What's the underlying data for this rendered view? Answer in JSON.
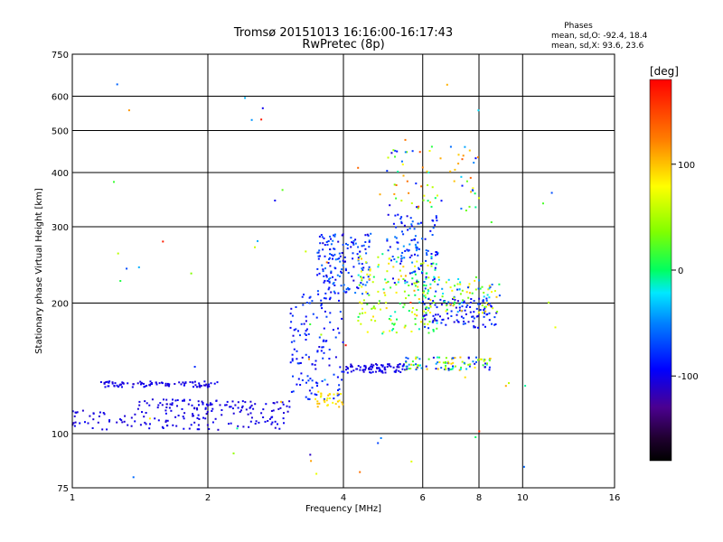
{
  "header": {
    "title": "Tromsø 20151013 16:16:00-16:17:43",
    "subtitle": "RwPretec (8p)",
    "stats_heading": "Phases",
    "stats_o": "mean, sd,O: -92.4, 18.4",
    "stats_x": "mean, sd,X:  93.6, 23.6"
  },
  "colorbar": {
    "label": "[deg]",
    "min": -180,
    "max": 180,
    "ticks": [
      {
        "value": 100,
        "label": "100"
      },
      {
        "value": 0,
        "label": "0"
      },
      {
        "value": -100,
        "label": "-100"
      }
    ]
  },
  "chart_data": {
    "type": "scatter",
    "title": "Tromsø 20151013 16:16:00-16:17:43",
    "subtitle": "RwPretec (8p)",
    "xlabel": "Frequency [MHz]",
    "ylabel": "Stationary phase Virtual Height [km]",
    "xscale": "log",
    "yscale": "log",
    "xlim": [
      1,
      16
    ],
    "ylim": [
      75,
      750
    ],
    "grid": true,
    "xticks": [
      {
        "value": 1,
        "label": "1"
      },
      {
        "value": 2,
        "label": "2"
      },
      {
        "value": 4,
        "label": "4"
      },
      {
        "value": 6,
        "label": "6"
      },
      {
        "value": 8,
        "label": "8"
      },
      {
        "value": 10,
        "label": "10"
      },
      {
        "value": 16,
        "label": "16"
      }
    ],
    "yticks": [
      {
        "value": 75,
        "label": "75"
      },
      {
        "value": 100,
        "label": "100"
      },
      {
        "value": 200,
        "label": "200"
      },
      {
        "value": 300,
        "label": "300"
      },
      {
        "value": 400,
        "label": "400"
      },
      {
        "value": 500,
        "label": "500"
      },
      {
        "value": 600,
        "label": "600"
      },
      {
        "value": 750,
        "label": "750"
      }
    ],
    "point_groups": [
      {
        "f_range": [
          1.0,
          3.05
        ],
        "h_range": [
          102,
          113
        ],
        "phase_range": [
          -110,
          -95
        ],
        "count": 120
      },
      {
        "f_range": [
          1.12,
          2.1
        ],
        "h_range": [
          128,
          132
        ],
        "phase_range": [
          -110,
          -95
        ],
        "count": 90
      },
      {
        "f_range": [
          1.4,
          3.05
        ],
        "h_range": [
          113,
          120
        ],
        "phase_range": [
          -110,
          -95
        ],
        "count": 90
      },
      {
        "f_range": [
          3.05,
          4.0
        ],
        "h_range": [
          120,
          210
        ],
        "phase_range": [
          -105,
          -70
        ],
        "count": 130
      },
      {
        "f_range": [
          3.4,
          4.0
        ],
        "h_range": [
          115,
          125
        ],
        "phase_range": [
          70,
          110
        ],
        "count": 30
      },
      {
        "f_range": [
          3.5,
          4.6
        ],
        "h_range": [
          210,
          290
        ],
        "phase_range": [
          -110,
          -50
        ],
        "count": 160
      },
      {
        "f_range": [
          4.0,
          5.5
        ],
        "h_range": [
          138,
          145
        ],
        "phase_range": [
          -110,
          -90
        ],
        "count": 80
      },
      {
        "f_range": [
          4.3,
          6.5
        ],
        "h_range": [
          170,
          260
        ],
        "phase_range": [
          -20,
          110
        ],
        "count": 160
      },
      {
        "f_range": [
          5.0,
          6.5
        ],
        "h_range": [
          220,
          320
        ],
        "phase_range": [
          -110,
          -40
        ],
        "count": 110
      },
      {
        "f_range": [
          5.5,
          8.5
        ],
        "h_range": [
          140,
          150
        ],
        "phase_range": [
          -110,
          110
        ],
        "count": 100
      },
      {
        "f_range": [
          6.0,
          8.8
        ],
        "h_range": [
          175,
          205
        ],
        "phase_range": [
          -110,
          -70
        ],
        "count": 110
      },
      {
        "f_range": [
          6.0,
          9.0
        ],
        "h_range": [
          190,
          230
        ],
        "phase_range": [
          -80,
          110
        ],
        "count": 90
      },
      {
        "f_range": [
          5.0,
          8.0
        ],
        "h_range": [
          330,
          460
        ],
        "phase_range": [
          -110,
          150
        ],
        "count": 70
      },
      {
        "f_range": [
          1.2,
          12.0
        ],
        "h_range": [
          78,
          650
        ],
        "phase_range": [
          -120,
          180
        ],
        "count": 60
      }
    ]
  }
}
